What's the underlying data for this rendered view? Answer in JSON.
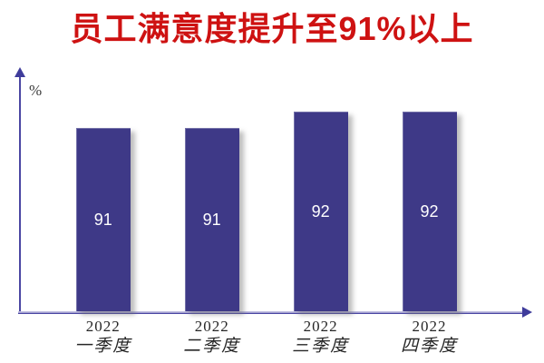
{
  "title": {
    "text": "员工满意度提升至91%以上",
    "color": "#CE1212"
  },
  "chart_data": {
    "type": "bar",
    "title": "员工满意度提升至91%以上",
    "categories": [
      {
        "year": "2022",
        "quarter": "一季度"
      },
      {
        "year": "2022",
        "quarter": "二季度"
      },
      {
        "year": "2022",
        "quarter": "三季度"
      },
      {
        "year": "2022",
        "quarter": "四季度"
      }
    ],
    "values": [
      91,
      91,
      92,
      92
    ],
    "value_labels": [
      "91",
      "91",
      "92",
      "92"
    ],
    "xlabel": "",
    "ylabel": "%",
    "ylim": [
      80,
      94
    ],
    "grid": false,
    "legend": false,
    "bar_color": "#3E3987",
    "value_label_color": "#FFFFFF",
    "axis_color": "#4B47A3",
    "title_color": "#CE1212"
  }
}
